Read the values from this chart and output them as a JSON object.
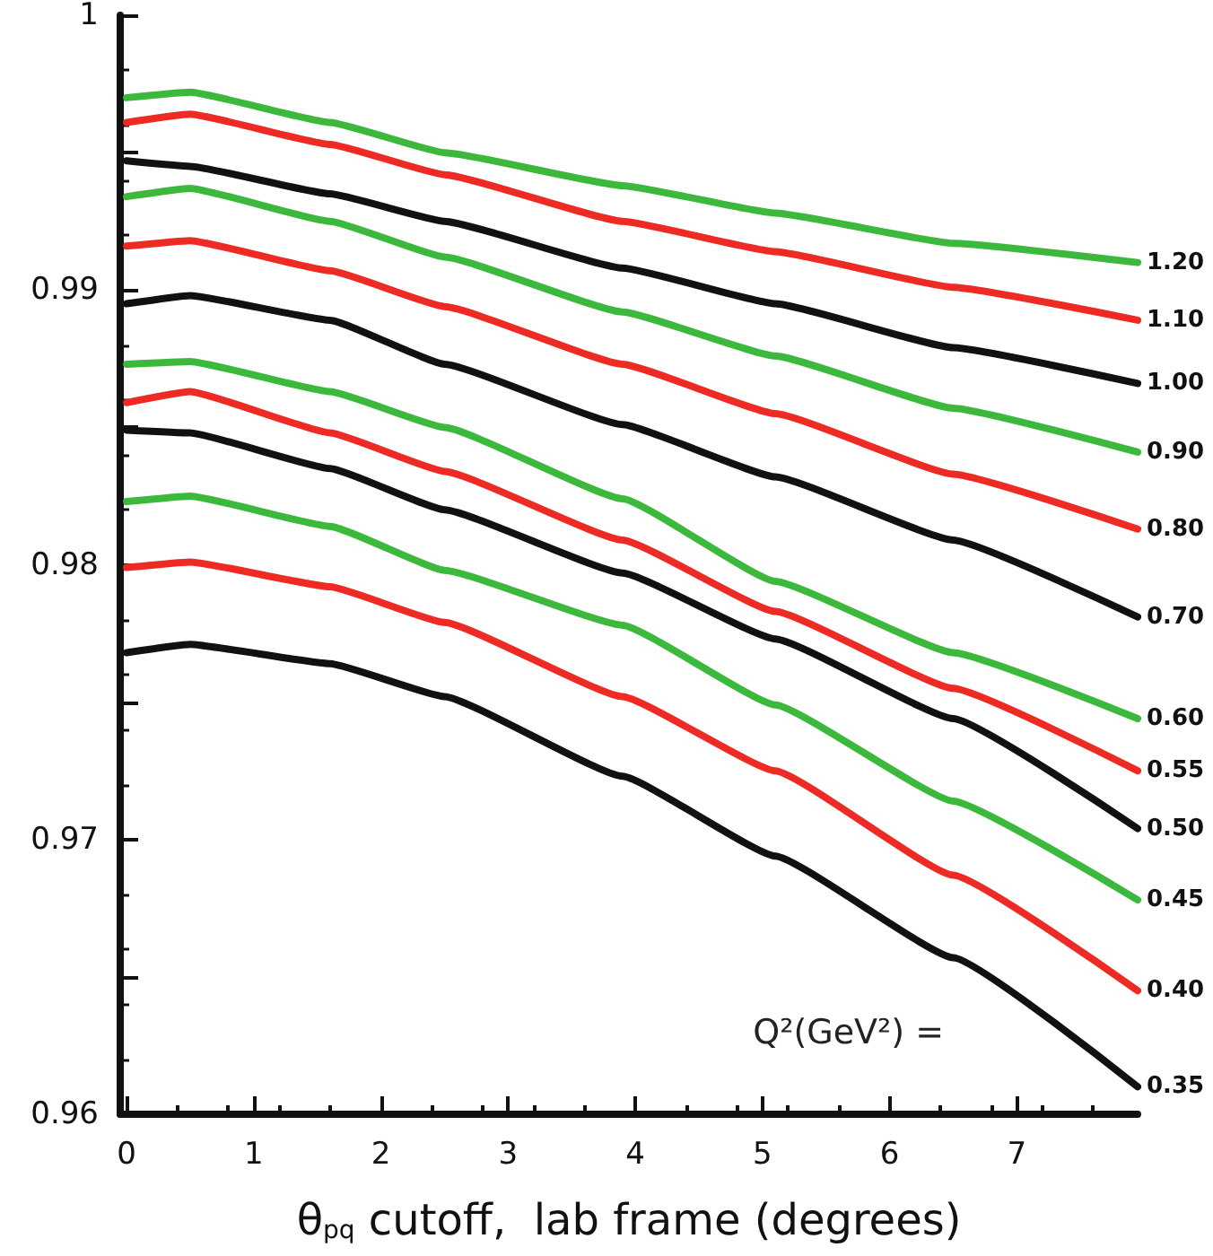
{
  "chart_data": {
    "type": "line",
    "xlabel": "θ$_{pq}$ cutoff,  lab frame (degrees)",
    "legend_title": "Q²(GeV²) =",
    "legend": false,
    "grid": false,
    "marker": "none",
    "line_style": "solid",
    "x": [
      0,
      0.5,
      1.6,
      2.5,
      3.9,
      5.1,
      6.5,
      7.95
    ],
    "xlim": [
      -0.05,
      7.95
    ],
    "xticks": [
      0,
      1,
      2,
      3,
      4,
      5,
      6,
      7
    ],
    "ylim": [
      0.96,
      1
    ],
    "yticks": [
      0.96,
      {
        "value": 0.965,
        "label": null
      },
      0.97,
      {
        "value": 0.975,
        "label": null
      },
      0.98,
      {
        "value": 0.985,
        "label": null
      },
      0.99,
      {
        "value": 0.995,
        "label": null
      },
      {
        "value": 1,
        "label": "1"
      }
    ],
    "series": [
      {
        "name": "1.20",
        "color": "#3cb93c",
        "values": [
          0.997,
          0.9972,
          0.9961,
          0.995,
          0.9938,
          0.9928,
          0.9917,
          0.991
        ]
      },
      {
        "name": "1.10",
        "color": "#ee2a24",
        "values": [
          0.9961,
          0.9964,
          0.9953,
          0.9942,
          0.9925,
          0.9914,
          0.9901,
          0.9889
        ]
      },
      {
        "name": "1.00",
        "color": "#111111",
        "values": [
          0.9947,
          0.9945,
          0.9935,
          0.9925,
          0.9908,
          0.9895,
          0.9879,
          0.9866
        ]
      },
      {
        "name": "0.90",
        "color": "#3cb93c",
        "values": [
          0.9934,
          0.9937,
          0.9925,
          0.9912,
          0.9892,
          0.9876,
          0.9857,
          0.9841
        ]
      },
      {
        "name": "0.80",
        "color": "#ee2a24",
        "values": [
          0.9916,
          0.9918,
          0.9907,
          0.9894,
          0.9873,
          0.9855,
          0.9833,
          0.9813
        ]
      },
      {
        "name": "0.70",
        "color": "#111111",
        "values": [
          0.9895,
          0.9898,
          0.9889,
          0.9873,
          0.9851,
          0.9832,
          0.9809,
          0.9781
        ]
      },
      {
        "name": "0.60",
        "color": "#3cb93c",
        "values": [
          0.9873,
          0.9874,
          0.9863,
          0.985,
          0.9824,
          0.9794,
          0.9768,
          0.9744
        ]
      },
      {
        "name": "0.55",
        "color": "#ee2a24",
        "values": [
          0.9859,
          0.9863,
          0.9848,
          0.9834,
          0.9809,
          0.9783,
          0.9755,
          0.9725
        ]
      },
      {
        "name": "0.50",
        "color": "#111111",
        "values": [
          0.9849,
          0.9848,
          0.9835,
          0.982,
          0.9797,
          0.9773,
          0.9744,
          0.9704
        ]
      },
      {
        "name": "0.45",
        "color": "#3cb93c",
        "values": [
          0.9823,
          0.9825,
          0.9814,
          0.9798,
          0.9778,
          0.9749,
          0.9714,
          0.9678
        ]
      },
      {
        "name": "0.40",
        "color": "#ee2a24",
        "values": [
          0.9799,
          0.9801,
          0.9792,
          0.9779,
          0.9752,
          0.9725,
          0.9687,
          0.9645
        ]
      },
      {
        "name": "0.35",
        "color": "#111111",
        "values": [
          0.9768,
          0.9771,
          0.9764,
          0.9752,
          0.9723,
          0.9694,
          0.9657,
          0.961
        ]
      }
    ]
  }
}
